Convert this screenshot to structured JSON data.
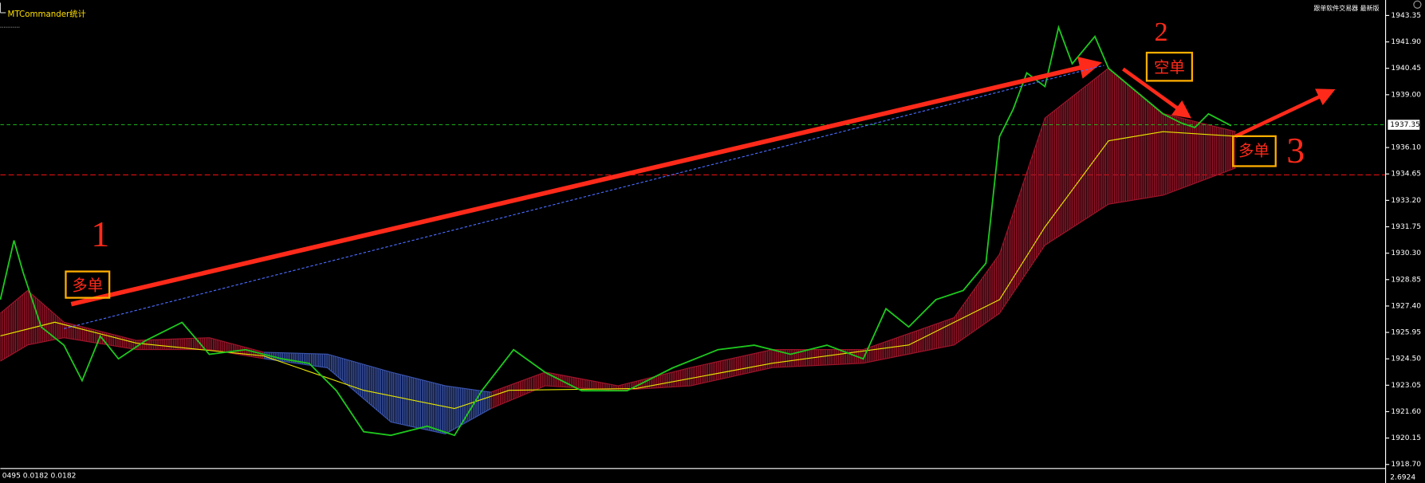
{
  "chart_data": {
    "type": "line",
    "indicator_label": "MTCommander统计",
    "top_right_text": "跟单软件交易器 最新版",
    "status_left": "0495 0.0182 0.0182",
    "status_right": "2.6924",
    "annotations": [
      "1",
      "多单",
      "2",
      "空单",
      "多单",
      "3"
    ],
    "xlim": [
      0,
      1525
    ],
    "ylim": [
      1918.48,
      1944.2
    ],
    "yticks": [
      1943.35,
      {
        "value": 1941.9,
        "label": "1941.90"
      },
      1940.45,
      {
        "value": 1939,
        "label": "1939.00"
      },
      {
        "value": 1936.1,
        "label": "1936.10"
      },
      1934.65,
      {
        "value": 1933.2,
        "label": "1933.20"
      },
      1931.75,
      {
        "value": 1930.3,
        "label": "1930.30"
      },
      1928.85,
      {
        "value": 1927.4,
        "label": "1927.40"
      },
      1925.95,
      {
        "value": 1924.5,
        "label": "1924.50"
      },
      1923.05,
      {
        "value": 1921.6,
        "label": "1921.60"
      },
      1920.15,
      {
        "value": 1918.7,
        "label": "1918.70"
      }
    ],
    "current_price": 1937.35,
    "stop_level": 1934.6,
    "price": {
      "color": "#1ec81e",
      "x": [
        0,
        15,
        25,
        45,
        70,
        90,
        110,
        130,
        160,
        200,
        230,
        270,
        310,
        340,
        370,
        400,
        430,
        470,
        500,
        530,
        565,
        600,
        640,
        690,
        740,
        790,
        830,
        870,
        910,
        950,
        975,
        1000,
        1030,
        1060,
        1085,
        1100,
        1115,
        1130,
        1150,
        1165,
        1180,
        1205,
        1220,
        1250,
        1280,
        1300,
        1315,
        1330,
        1355
      ],
      "values": [
        1927.75,
        1931.0,
        1929.25,
        1926.25,
        1925.25,
        1923.3,
        1925.75,
        1924.5,
        1925.5,
        1926.5,
        1924.75,
        1925.0,
        1924.5,
        1924.25,
        1922.75,
        1920.5,
        1920.3,
        1920.8,
        1920.3,
        1922.75,
        1925.0,
        1923.75,
        1922.75,
        1922.75,
        1924.0,
        1925.0,
        1925.25,
        1924.75,
        1925.25,
        1924.5,
        1927.25,
        1926.25,
        1927.75,
        1928.25,
        1929.75,
        1936.7,
        1938.2,
        1940.2,
        1939.45,
        1942.7,
        1940.7,
        1942.2,
        1940.45,
        1939.2,
        1937.95,
        1937.45,
        1937.2,
        1937.95,
        1937.3
      ]
    },
    "moving_average": {
      "color": "#e6e600",
      "x": [
        0,
        60,
        150,
        290,
        400,
        500,
        560,
        700,
        850,
        1000,
        1100,
        1150,
        1220,
        1280,
        1360
      ],
      "values": [
        1925.76,
        1926.51,
        1925.36,
        1924.66,
        1922.77,
        1921.77,
        1922.77,
        1922.87,
        1924.26,
        1925.26,
        1927.75,
        1931.74,
        1936.47,
        1936.97,
        1936.72
      ]
    },
    "cloud": [
      {
        "color": "#a0142a",
        "x": [
          0,
          30,
          70,
          150,
          230,
          290
        ],
        "upper": [
          1927.0,
          1928.25,
          1926.51,
          1925.51,
          1925.66,
          1924.86
        ],
        "lower": [
          1924.37,
          1925.26,
          1925.66,
          1925.01,
          1925.01,
          1924.51
        ]
      },
      {
        "color": "#3a55b0",
        "x": [
          290,
          360,
          430,
          490,
          540
        ],
        "upper": [
          1924.86,
          1924.76,
          1923.77,
          1923.02,
          1922.67
        ],
        "lower": [
          1924.51,
          1924.01,
          1921.03,
          1920.38,
          1921.77
        ]
      },
      {
        "color": "#a0142a",
        "x": [
          540,
          600,
          680,
          760,
          850,
          950,
          1050,
          1100,
          1150,
          1220,
          1280,
          1360
        ],
        "upper": [
          1922.67,
          1923.77,
          1923.02,
          1924.02,
          1925.01,
          1925.01,
          1926.76,
          1930.25,
          1937.72,
          1940.46,
          1937.97,
          1936.97
        ],
        "lower": [
          1921.77,
          1923.02,
          1922.77,
          1923.02,
          1924.02,
          1924.26,
          1925.26,
          1927.0,
          1930.74,
          1932.99,
          1933.48,
          1934.98
        ]
      }
    ]
  }
}
